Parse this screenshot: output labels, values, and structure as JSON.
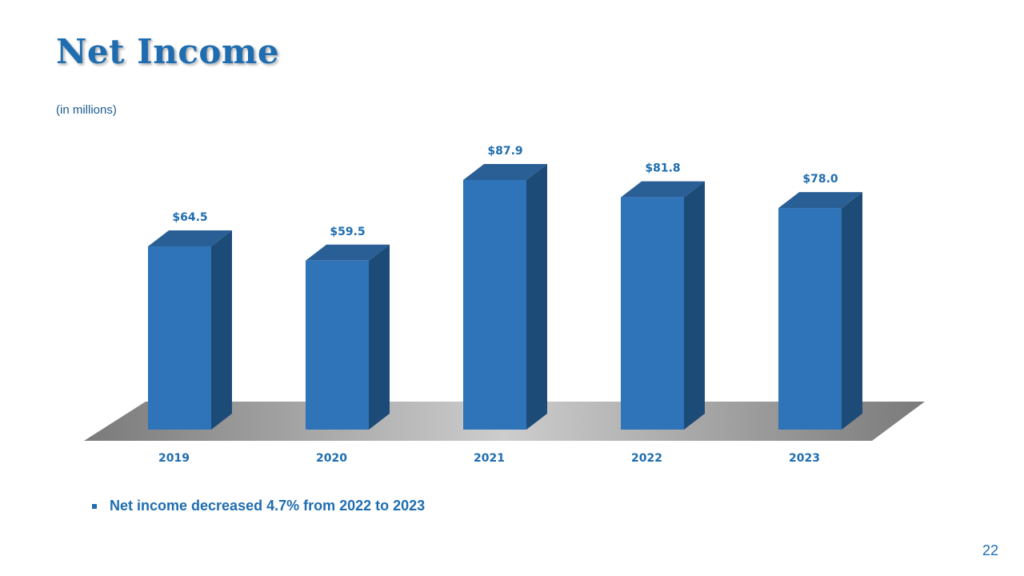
{
  "slide": {
    "title": "Net Income",
    "subtitle": "(in millions)",
    "bullet": "Net income decreased 4.7% from 2022 to 2023",
    "page_number": "22"
  },
  "colors": {
    "bar_front": "#2f74b8",
    "bar_side": "#1d4b78",
    "bar_top": "#2a5f96",
    "label": "#1f6db0",
    "floor_mid": "#c9c9c9",
    "floor_edge": "#7a7a7a"
  },
  "chart_data": {
    "type": "bar",
    "categories": [
      "2019",
      "2020",
      "2021",
      "2022",
      "2023"
    ],
    "values": [
      64.5,
      59.5,
      87.9,
      81.8,
      78.0
    ],
    "data_labels": [
      "$64.5",
      "$59.5",
      "$87.9",
      "$81.8",
      "$78.0"
    ],
    "title": "",
    "xlabel": "",
    "ylabel": "",
    "grid": false,
    "legend": "none"
  }
}
